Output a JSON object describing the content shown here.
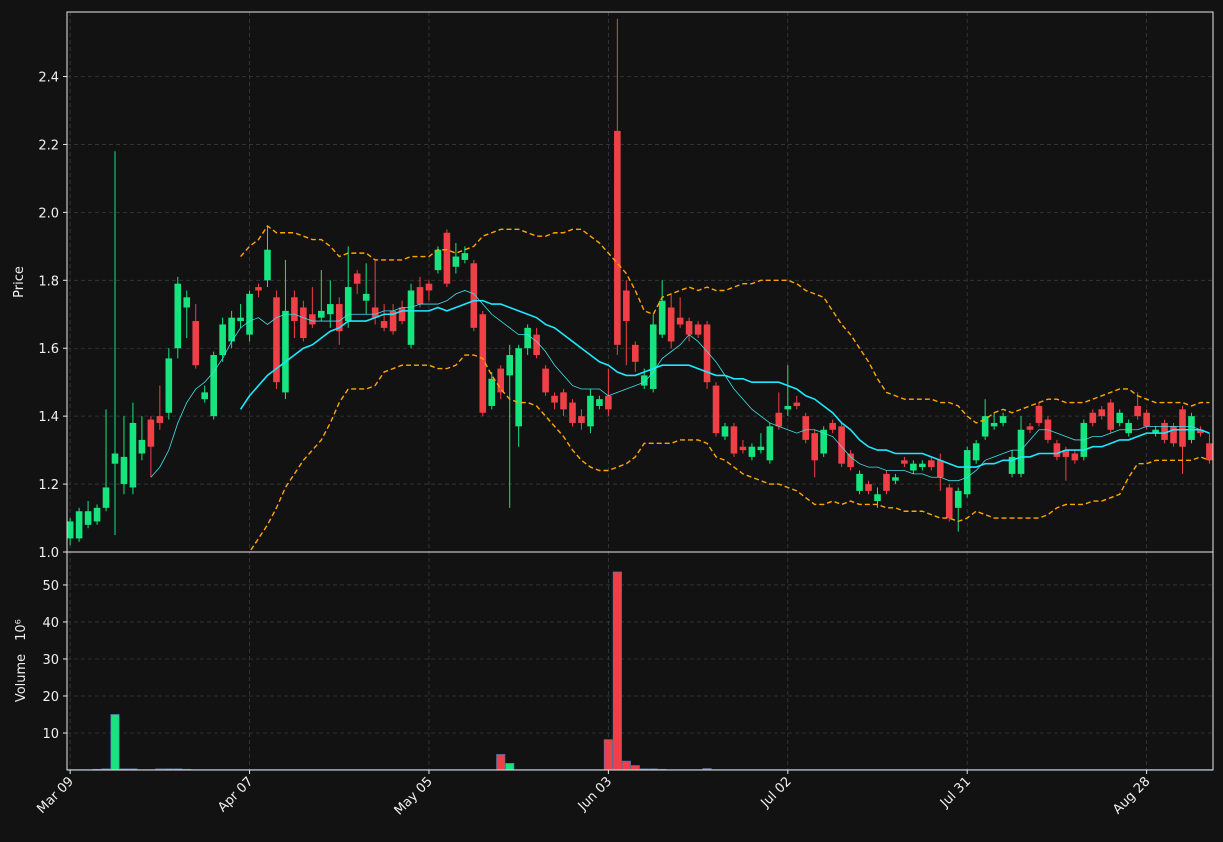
{
  "chart_data": {
    "type": "candlestick",
    "y_label": "Price",
    "volume_label": "Volume",
    "volume_exponent": "10⁶",
    "grid": true,
    "up_color": "#16e57f",
    "down_color": "#ef4048",
    "volume_edge_color": "#4a78b0",
    "xlim": [
      -0.35,
      127.4
    ],
    "ylim": [
      1.0,
      2.59
    ],
    "yticks": [
      {
        "value": 1.0,
        "label": "1.0"
      },
      1.2,
      1.4,
      1.6,
      1.8,
      {
        "value": 2.0,
        "label": "2.0"
      },
      2.2,
      2.4
    ],
    "volume_ylim": [
      0,
      58.9
    ],
    "volume_yticks": [
      10,
      20,
      30,
      40,
      50
    ],
    "categories": [
      "Mar 09",
      null,
      null,
      null,
      null,
      null,
      null,
      null,
      null,
      null,
      null,
      null,
      null,
      null,
      null,
      null,
      null,
      null,
      null,
      null,
      "Apr 07",
      null,
      null,
      null,
      null,
      null,
      null,
      null,
      null,
      null,
      null,
      null,
      null,
      null,
      null,
      null,
      null,
      null,
      null,
      null,
      "May 05",
      null,
      null,
      null,
      null,
      null,
      null,
      null,
      null,
      null,
      null,
      null,
      null,
      null,
      null,
      null,
      null,
      null,
      null,
      null,
      "Jun 03",
      null,
      null,
      null,
      null,
      null,
      null,
      null,
      null,
      null,
      null,
      null,
      null,
      null,
      null,
      null,
      null,
      null,
      null,
      null,
      "Jul 02",
      null,
      null,
      null,
      null,
      null,
      null,
      null,
      null,
      null,
      null,
      null,
      null,
      null,
      null,
      null,
      null,
      null,
      null,
      null,
      "Jul 31",
      null,
      null,
      null,
      null,
      null,
      null,
      null,
      null,
      null,
      null,
      null,
      null,
      null,
      null,
      null,
      null,
      null,
      null,
      null,
      "Aug 28",
      null,
      null,
      null,
      null,
      null,
      null,
      null
    ],
    "open": [
      1.04,
      1.04,
      1.08,
      1.09,
      1.13,
      1.26,
      1.2,
      1.19,
      1.29,
      1.39,
      1.4,
      1.41,
      1.6,
      1.72,
      1.68,
      1.45,
      1.4,
      1.58,
      1.62,
      1.68,
      1.64,
      1.78,
      1.8,
      1.75,
      1.47,
      1.75,
      1.72,
      1.7,
      1.69,
      1.7,
      1.73,
      1.68,
      1.82,
      1.74,
      1.72,
      1.68,
      1.71,
      1.72,
      1.61,
      1.78,
      1.79,
      1.83,
      1.94,
      1.84,
      1.86,
      1.85,
      1.7,
      1.43,
      1.54,
      1.52,
      1.37,
      1.6,
      1.64,
      1.54,
      1.46,
      1.47,
      1.44,
      1.4,
      1.37,
      1.43,
      1.46,
      2.24,
      1.77,
      1.61,
      1.49,
      1.48,
      1.64,
      1.72,
      1.69,
      1.68,
      1.67,
      1.67,
      1.49,
      1.34,
      1.37,
      1.31,
      1.28,
      1.3,
      1.27,
      1.41,
      1.42,
      1.44,
      1.4,
      1.35,
      1.29,
      1.38,
      1.37,
      1.29,
      1.18,
      1.2,
      1.15,
      1.23,
      1.21,
      1.27,
      1.24,
      1.25,
      1.27,
      1.27,
      1.19,
      1.13,
      1.17,
      1.27,
      1.34,
      1.37,
      1.38,
      1.23,
      1.23,
      1.37,
      1.43,
      1.39,
      1.32,
      1.3,
      1.29,
      1.28,
      1.41,
      1.42,
      1.44,
      1.38,
      1.35,
      1.43,
      1.41,
      1.35,
      1.38,
      1.37,
      1.42,
      1.33,
      1.36,
      1.32
    ],
    "high": [
      1.1,
      1.13,
      1.15,
      1.14,
      1.42,
      2.18,
      1.4,
      1.44,
      1.4,
      1.4,
      1.49,
      1.6,
      1.81,
      1.77,
      1.73,
      1.49,
      1.59,
      1.69,
      1.71,
      1.73,
      1.77,
      1.79,
      1.96,
      1.77,
      1.86,
      1.77,
      1.74,
      1.78,
      1.83,
      1.8,
      1.75,
      1.9,
      1.83,
      1.85,
      1.86,
      1.73,
      1.73,
      1.74,
      1.79,
      1.81,
      1.8,
      1.9,
      1.95,
      1.91,
      1.9,
      1.86,
      1.71,
      1.53,
      1.55,
      1.61,
      1.61,
      1.67,
      1.66,
      1.55,
      1.47,
      1.48,
      1.45,
      1.42,
      1.48,
      1.46,
      1.54,
      2.57,
      1.8,
      1.62,
      1.54,
      1.7,
      1.8,
      1.76,
      1.75,
      1.69,
      1.68,
      1.68,
      1.5,
      1.38,
      1.38,
      1.33,
      1.32,
      1.35,
      1.38,
      1.47,
      1.55,
      1.46,
      1.41,
      1.36,
      1.37,
      1.39,
      1.38,
      1.3,
      1.24,
      1.21,
      1.19,
      1.24,
      1.23,
      1.28,
      1.27,
      1.27,
      1.28,
      1.29,
      1.2,
      1.19,
      1.31,
      1.33,
      1.45,
      1.41,
      1.41,
      1.3,
      1.4,
      1.38,
      1.44,
      1.4,
      1.33,
      1.31,
      1.3,
      1.39,
      1.42,
      1.43,
      1.45,
      1.42,
      1.39,
      1.47,
      1.42,
      1.37,
      1.39,
      1.38,
      1.43,
      1.41,
      1.37,
      1.35
    ],
    "low": [
      1.02,
      1.03,
      1.07,
      1.08,
      1.12,
      1.05,
      1.17,
      1.17,
      1.27,
      1.22,
      1.36,
      1.39,
      1.57,
      1.63,
      1.54,
      1.44,
      1.39,
      1.56,
      1.6,
      1.66,
      1.62,
      1.75,
      1.78,
      1.48,
      1.45,
      1.63,
      1.62,
      1.66,
      1.68,
      1.66,
      1.61,
      1.66,
      1.76,
      1.7,
      1.67,
      1.65,
      1.64,
      1.67,
      1.6,
      1.72,
      1.74,
      1.82,
      1.78,
      1.82,
      1.85,
      1.65,
      1.4,
      1.42,
      1.45,
      1.13,
      1.31,
      1.58,
      1.57,
      1.46,
      1.42,
      1.4,
      1.37,
      1.36,
      1.35,
      1.42,
      1.4,
      1.58,
      1.55,
      1.53,
      1.48,
      1.47,
      1.63,
      1.6,
      1.66,
      1.62,
      1.63,
      1.48,
      1.34,
      1.33,
      1.28,
      1.29,
      1.27,
      1.29,
      1.26,
      1.36,
      1.4,
      1.42,
      1.32,
      1.22,
      1.28,
      1.35,
      1.25,
      1.24,
      1.17,
      1.17,
      1.13,
      1.17,
      1.2,
      1.25,
      1.23,
      1.24,
      1.24,
      1.18,
      1.09,
      1.06,
      1.16,
      1.26,
      1.33,
      1.36,
      1.37,
      1.22,
      1.22,
      1.35,
      1.37,
      1.32,
      1.27,
      1.21,
      1.26,
      1.27,
      1.37,
      1.39,
      1.35,
      1.37,
      1.34,
      1.39,
      1.36,
      1.34,
      1.32,
      1.31,
      1.23,
      1.32,
      1.34,
      1.26
    ],
    "close": [
      1.09,
      1.12,
      1.12,
      1.13,
      1.19,
      1.29,
      1.28,
      1.38,
      1.33,
      1.31,
      1.38,
      1.57,
      1.79,
      1.75,
      1.55,
      1.47,
      1.58,
      1.67,
      1.69,
      1.69,
      1.76,
      1.77,
      1.89,
      1.5,
      1.71,
      1.68,
      1.63,
      1.67,
      1.71,
      1.73,
      1.65,
      1.78,
      1.79,
      1.76,
      1.69,
      1.66,
      1.65,
      1.68,
      1.77,
      1.73,
      1.77,
      1.89,
      1.79,
      1.87,
      1.88,
      1.66,
      1.41,
      1.51,
      1.47,
      1.58,
      1.6,
      1.66,
      1.58,
      1.47,
      1.44,
      1.42,
      1.38,
      1.38,
      1.46,
      1.45,
      1.42,
      1.61,
      1.68,
      1.56,
      1.52,
      1.67,
      1.74,
      1.62,
      1.67,
      1.64,
      1.64,
      1.5,
      1.35,
      1.37,
      1.29,
      1.3,
      1.31,
      1.31,
      1.37,
      1.37,
      1.43,
      1.43,
      1.33,
      1.27,
      1.36,
      1.36,
      1.26,
      1.25,
      1.23,
      1.18,
      1.17,
      1.18,
      1.22,
      1.26,
      1.26,
      1.26,
      1.25,
      1.22,
      1.1,
      1.18,
      1.3,
      1.32,
      1.4,
      1.38,
      1.4,
      1.28,
      1.36,
      1.36,
      1.38,
      1.33,
      1.28,
      1.28,
      1.27,
      1.38,
      1.38,
      1.4,
      1.36,
      1.41,
      1.38,
      1.4,
      1.37,
      1.36,
      1.33,
      1.32,
      1.31,
      1.4,
      1.35,
      1.27
    ],
    "volume": [
      0.1,
      0.1,
      0.1,
      0.2,
      0.3,
      15,
      0.3,
      0.3,
      0.1,
      0.1,
      0.3,
      0.3,
      0.3,
      0.2,
      0.1,
      0.1,
      0.1,
      0.1,
      0.1,
      0.1,
      0.1,
      0.1,
      0.1,
      0.1,
      0.1,
      0.1,
      0.1,
      0.1,
      0.1,
      0.1,
      0.1,
      0.1,
      0.1,
      0.1,
      0.1,
      0.1,
      0.1,
      0.1,
      0.1,
      0.1,
      0.1,
      0.1,
      0.1,
      0.1,
      0.1,
      0.1,
      0.1,
      0.1,
      4.2,
      1.8,
      0.1,
      0.1,
      0.1,
      0.1,
      0.1,
      0.1,
      0.1,
      0.1,
      0.1,
      0.1,
      8.2,
      53.5,
      2.4,
      1.2,
      0.3,
      0.3,
      0.2,
      0.1,
      0.1,
      0.1,
      0.1,
      0.4,
      0.1,
      0.1,
      0.1,
      0.1,
      0.1,
      0.1,
      0.1,
      0.1,
      0.1,
      0.1,
      0.1,
      0.1,
      0.1,
      0.1,
      0.1,
      0.1,
      0.1,
      0.1,
      0.1,
      0.1,
      0.1,
      0.1,
      0.1,
      0.1,
      0.1,
      0.1,
      0.1,
      0.1,
      0.1,
      0.1,
      0.1,
      0.1,
      0.1,
      0.1,
      0.1,
      0.1,
      0.1,
      0.1,
      0.1,
      0.1,
      0.1,
      0.1,
      0.1,
      0.1,
      0.1,
      0.1,
      0.1,
      0.1,
      0.1,
      0.1,
      0.1,
      0.1,
      0.1,
      0.1,
      0.1,
      0.1
    ],
    "lines": [
      {
        "color": "#40e0e8",
        "width": 0.8,
        "dashed": false,
        "values": [
          null,
          null,
          null,
          null,
          null,
          null,
          null,
          null,
          null,
          1.22,
          1.25,
          1.3,
          1.38,
          1.44,
          1.48,
          1.5,
          1.53,
          1.57,
          1.62,
          1.66,
          1.68,
          1.69,
          1.67,
          1.69,
          1.7,
          1.7,
          1.69,
          1.68,
          1.68,
          1.68,
          1.68,
          1.7,
          1.7,
          1.7,
          1.7,
          1.71,
          1.71,
          1.72,
          1.72,
          1.73,
          1.73,
          1.73,
          1.74,
          1.76,
          1.77,
          1.76,
          1.73,
          1.7,
          1.68,
          1.66,
          1.64,
          1.64,
          1.62,
          1.59,
          1.55,
          1.52,
          1.49,
          1.48,
          1.48,
          1.48,
          1.46,
          1.47,
          1.48,
          1.49,
          1.5,
          1.53,
          1.57,
          1.59,
          1.61,
          1.64,
          1.62,
          1.59,
          1.56,
          1.52,
          1.48,
          1.45,
          1.42,
          1.4,
          1.38,
          1.37,
          1.36,
          1.35,
          1.36,
          1.36,
          1.35,
          1.34,
          1.31,
          1.28,
          1.26,
          1.25,
          1.25,
          1.24,
          1.24,
          1.24,
          1.23,
          1.23,
          1.22,
          1.22,
          1.21,
          1.21,
          1.22,
          1.24,
          1.27,
          1.28,
          1.29,
          1.3,
          1.3,
          1.33,
          1.36,
          1.36,
          1.35,
          1.34,
          1.33,
          1.33,
          1.34,
          1.34,
          1.35,
          1.36,
          1.36,
          1.36,
          1.37,
          1.37,
          1.37,
          1.37,
          1.37,
          1.37,
          1.36,
          1.35
        ]
      },
      {
        "color": "#1ee8ff",
        "width": 1.6,
        "dashed": false,
        "values": [
          null,
          null,
          null,
          null,
          null,
          null,
          null,
          null,
          null,
          null,
          null,
          null,
          null,
          null,
          null,
          null,
          null,
          null,
          null,
          1.42,
          1.46,
          1.49,
          1.52,
          1.54,
          1.56,
          1.58,
          1.6,
          1.61,
          1.63,
          1.65,
          1.66,
          1.68,
          1.68,
          1.68,
          1.69,
          1.7,
          1.7,
          1.71,
          1.71,
          1.71,
          1.71,
          1.72,
          1.71,
          1.72,
          1.73,
          1.74,
          1.74,
          1.73,
          1.73,
          1.72,
          1.71,
          1.7,
          1.69,
          1.67,
          1.66,
          1.64,
          1.62,
          1.6,
          1.58,
          1.56,
          1.55,
          1.53,
          1.52,
          1.52,
          1.53,
          1.54,
          1.55,
          1.55,
          1.55,
          1.55,
          1.54,
          1.53,
          1.52,
          1.52,
          1.51,
          1.51,
          1.5,
          1.5,
          1.5,
          1.5,
          1.49,
          1.48,
          1.46,
          1.45,
          1.43,
          1.41,
          1.38,
          1.36,
          1.33,
          1.31,
          1.3,
          1.3,
          1.29,
          1.29,
          1.29,
          1.29,
          1.28,
          1.27,
          1.26,
          1.25,
          1.25,
          1.25,
          1.26,
          1.26,
          1.27,
          1.27,
          1.28,
          1.28,
          1.29,
          1.29,
          1.29,
          1.3,
          1.3,
          1.3,
          1.31,
          1.31,
          1.32,
          1.33,
          1.33,
          1.34,
          1.35,
          1.35,
          1.35,
          1.36,
          1.36,
          1.36,
          1.36,
          1.35
        ]
      },
      {
        "color": "#ffa500",
        "width": 1.4,
        "dashed": true,
        "values": [
          null,
          null,
          null,
          null,
          null,
          null,
          null,
          null,
          null,
          null,
          null,
          null,
          null,
          null,
          null,
          null,
          null,
          null,
          null,
          1.87,
          1.9,
          1.92,
          1.96,
          1.94,
          1.94,
          1.94,
          1.93,
          1.92,
          1.92,
          1.9,
          1.87,
          1.88,
          1.88,
          1.88,
          1.86,
          1.86,
          1.86,
          1.86,
          1.87,
          1.87,
          1.87,
          1.89,
          1.89,
          1.88,
          1.89,
          1.9,
          1.93,
          1.94,
          1.95,
          1.95,
          1.95,
          1.94,
          1.93,
          1.93,
          1.94,
          1.94,
          1.95,
          1.95,
          1.93,
          1.91,
          1.88,
          1.85,
          1.82,
          1.77,
          1.71,
          1.7,
          1.75,
          1.76,
          1.77,
          1.78,
          1.77,
          1.78,
          1.77,
          1.77,
          1.78,
          1.79,
          1.79,
          1.8,
          1.8,
          1.8,
          1.8,
          1.79,
          1.77,
          1.76,
          1.75,
          1.71,
          1.67,
          1.64,
          1.6,
          1.56,
          1.51,
          1.47,
          1.46,
          1.45,
          1.45,
          1.45,
          1.45,
          1.44,
          1.44,
          1.43,
          1.4,
          1.38,
          1.39,
          1.41,
          1.42,
          1.41,
          1.42,
          1.43,
          1.44,
          1.45,
          1.45,
          1.44,
          1.44,
          1.44,
          1.45,
          1.46,
          1.47,
          1.48,
          1.48,
          1.46,
          1.45,
          1.44,
          1.44,
          1.44,
          1.44,
          1.43,
          1.44,
          1.44
        ]
      },
      {
        "color": "#ffa500",
        "width": 1.4,
        "dashed": true,
        "values": [
          null,
          null,
          null,
          null,
          null,
          null,
          null,
          null,
          null,
          null,
          null,
          null,
          null,
          null,
          null,
          null,
          null,
          null,
          null,
          0.97,
          1.0,
          1.04,
          1.08,
          1.13,
          1.19,
          1.23,
          1.27,
          1.3,
          1.33,
          1.38,
          1.44,
          1.48,
          1.48,
          1.48,
          1.49,
          1.53,
          1.54,
          1.55,
          1.55,
          1.55,
          1.55,
          1.54,
          1.54,
          1.55,
          1.58,
          1.58,
          1.57,
          1.52,
          1.48,
          1.45,
          1.44,
          1.44,
          1.43,
          1.4,
          1.37,
          1.34,
          1.3,
          1.27,
          1.25,
          1.24,
          1.24,
          1.25,
          1.26,
          1.28,
          1.32,
          1.32,
          1.32,
          1.32,
          1.33,
          1.33,
          1.33,
          1.32,
          1.28,
          1.27,
          1.25,
          1.23,
          1.22,
          1.21,
          1.2,
          1.2,
          1.19,
          1.18,
          1.16,
          1.14,
          1.14,
          1.15,
          1.14,
          1.15,
          1.14,
          1.14,
          1.14,
          1.13,
          1.13,
          1.12,
          1.12,
          1.12,
          1.11,
          1.1,
          1.1,
          1.09,
          1.1,
          1.12,
          1.11,
          1.1,
          1.1,
          1.1,
          1.1,
          1.1,
          1.1,
          1.11,
          1.13,
          1.14,
          1.14,
          1.14,
          1.15,
          1.15,
          1.16,
          1.17,
          1.22,
          1.26,
          1.26,
          1.27,
          1.27,
          1.27,
          1.27,
          1.27,
          1.28,
          1.27
        ]
      }
    ]
  }
}
